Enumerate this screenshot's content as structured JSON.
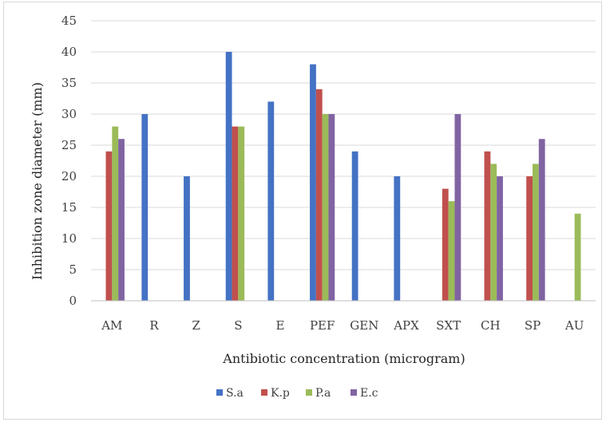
{
  "chart_data": {
    "type": "bar",
    "title": "",
    "xlabel": "Antibiotic concentration (microgram)",
    "ylabel": "Inhibition zone diameter (mm)",
    "ylim": [
      0,
      45
    ],
    "yticks": [
      0,
      5,
      10,
      15,
      20,
      25,
      30,
      35,
      40,
      45
    ],
    "grid": true,
    "legend_position": "bottom",
    "categories": [
      "AM",
      "R",
      "Z",
      "S",
      "E",
      "PEF",
      "GEN",
      "APX",
      "SXT",
      "CH",
      "SP",
      "AU"
    ],
    "series": [
      {
        "name": "S.a",
        "color": "#4472c4",
        "values": [
          0,
          30,
          20,
          40,
          32,
          38,
          24,
          20,
          0,
          0,
          0,
          0
        ]
      },
      {
        "name": "K.p",
        "color": "#c0504d",
        "values": [
          24,
          0,
          0,
          28,
          0,
          34,
          0,
          0,
          18,
          24,
          20,
          0
        ]
      },
      {
        "name": "P.a",
        "color": "#9bbb59",
        "values": [
          28,
          0,
          0,
          28,
          0,
          30,
          0,
          0,
          16,
          22,
          22,
          14
        ]
      },
      {
        "name": "E.c",
        "color": "#8064a2",
        "values": [
          26,
          0,
          0,
          0,
          0,
          30,
          0,
          0,
          30,
          20,
          26,
          0
        ]
      }
    ]
  }
}
